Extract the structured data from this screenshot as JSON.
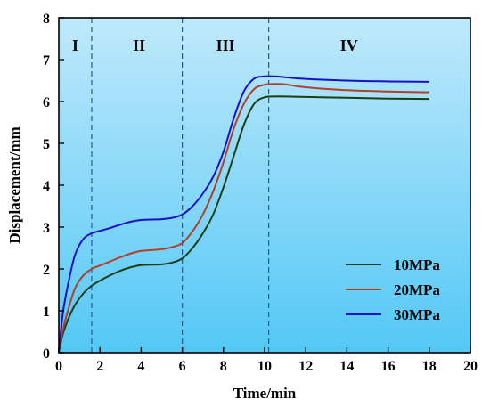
{
  "chart_data": {
    "type": "line",
    "title": "",
    "xlabel": "Time/min",
    "ylabel": "Displacement/mm",
    "xlim": [
      0,
      20
    ],
    "ylim": [
      0,
      8
    ],
    "xticks": [
      0,
      2,
      4,
      6,
      8,
      10,
      12,
      14,
      16,
      18,
      20
    ],
    "yticks": [
      0,
      1,
      2,
      3,
      4,
      5,
      6,
      7,
      8
    ],
    "grid": false,
    "legend_position": "bottom-right",
    "background_gradient": [
      "#bfe9fb",
      "#53c8f5"
    ],
    "stage_dividers": [
      1.6,
      6.0,
      10.2
    ],
    "stages": [
      {
        "label": "I",
        "x": 0.8
      },
      {
        "label": "II",
        "x": 3.9
      },
      {
        "label": "III",
        "x": 8.1
      },
      {
        "label": "IV",
        "x": 14.1
      }
    ],
    "series": [
      {
        "name": "10MPa",
        "color": "#1a3d1a",
        "x": [
          0,
          0.2,
          0.5,
          0.8,
          1.2,
          1.6,
          2.0,
          2.5,
          3.0,
          3.5,
          4.0,
          4.5,
          5.0,
          5.5,
          6.0,
          6.5,
          7.0,
          7.5,
          8.0,
          8.5,
          9.0,
          9.5,
          10.0,
          10.5,
          11.0,
          12.0,
          14.0,
          16.0,
          18.0
        ],
        "y": [
          0,
          0.45,
          0.85,
          1.15,
          1.42,
          1.6,
          1.72,
          1.85,
          1.96,
          2.04,
          2.09,
          2.1,
          2.11,
          2.15,
          2.25,
          2.5,
          2.85,
          3.3,
          3.95,
          4.7,
          5.45,
          5.95,
          6.1,
          6.12,
          6.12,
          6.11,
          6.09,
          6.07,
          6.06
        ]
      },
      {
        "name": "20MPa",
        "color": "#b0402a",
        "x": [
          0,
          0.2,
          0.5,
          0.8,
          1.2,
          1.6,
          2.0,
          2.5,
          3.0,
          3.5,
          4.0,
          4.5,
          5.0,
          5.5,
          6.0,
          6.5,
          7.0,
          7.5,
          8.0,
          8.5,
          9.0,
          9.5,
          10.0,
          10.5,
          11.0,
          12.0,
          14.0,
          16.0,
          18.0
        ],
        "y": [
          0,
          0.55,
          1.1,
          1.55,
          1.85,
          2.0,
          2.08,
          2.18,
          2.28,
          2.37,
          2.43,
          2.45,
          2.47,
          2.52,
          2.62,
          2.9,
          3.3,
          3.85,
          4.55,
          5.35,
          5.95,
          6.3,
          6.4,
          6.42,
          6.41,
          6.34,
          6.27,
          6.24,
          6.22
        ]
      },
      {
        "name": "30MPa",
        "color": "#1a10c8",
        "x": [
          0,
          0.2,
          0.5,
          0.8,
          1.2,
          1.6,
          2.0,
          2.5,
          3.0,
          3.5,
          4.0,
          4.5,
          5.0,
          5.5,
          6.0,
          6.5,
          7.0,
          7.5,
          8.0,
          8.5,
          9.0,
          9.5,
          10.0,
          10.5,
          11.0,
          12.0,
          14.0,
          16.0,
          18.0
        ],
        "y": [
          0,
          0.95,
          1.75,
          2.35,
          2.72,
          2.85,
          2.91,
          2.98,
          3.06,
          3.13,
          3.17,
          3.18,
          3.19,
          3.22,
          3.3,
          3.5,
          3.8,
          4.2,
          4.8,
          5.6,
          6.25,
          6.55,
          6.6,
          6.6,
          6.58,
          6.54,
          6.5,
          6.48,
          6.47
        ]
      }
    ]
  }
}
